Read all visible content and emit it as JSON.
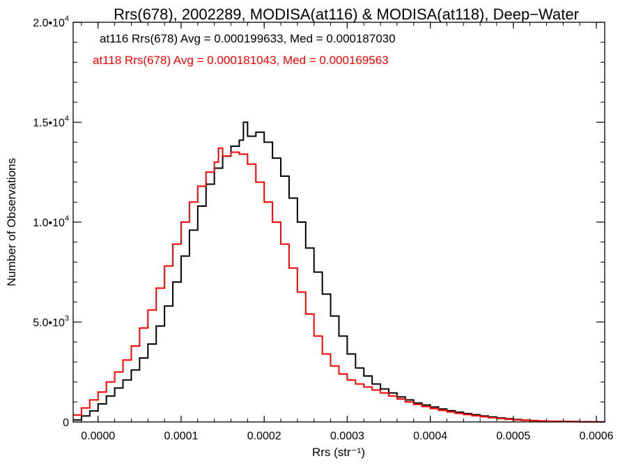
{
  "chart_data": {
    "type": "histogram-step",
    "title": "Rrs(678), 2002289, MODISA(at116) & MODISA(at118), Deep−Water",
    "xlabel": "Rrs (str⁻¹)",
    "ylabel": "Number of Observations",
    "xlim": [
      -3e-05,
      0.00061
    ],
    "ylim": [
      0,
      20000
    ],
    "x_ticks": [
      0.0,
      0.0001,
      0.0002,
      0.0003,
      0.0004,
      0.0005,
      0.0006
    ],
    "x_tick_labels": [
      "0.0000",
      "0.0001",
      "0.0002",
      "0.0003",
      "0.0004",
      "0.0005",
      "0.0006"
    ],
    "y_ticks": [
      0,
      5000,
      10000,
      15000,
      20000
    ],
    "y_tick_labels": [
      {
        "mantissa": "0",
        "exponent": ""
      },
      {
        "mantissa": "5.0•1",
        "exponent": "3"
      },
      {
        "mantissa": "1.0•1",
        "exponent": "4"
      },
      {
        "mantissa": "1.5•1",
        "exponent": "4"
      },
      {
        "mantissa": "2.0•1",
        "exponent": "4"
      }
    ],
    "grid": false,
    "annotations": [
      {
        "text": "at116 Rrs(678) Avg = 0.000199633, Med = 0.000187030",
        "color": "#000000"
      },
      {
        "text": "at118 Rrs(678) Avg = 0.000181043, Med = 0.000169563",
        "color": "#ff0000"
      }
    ],
    "series": [
      {
        "color": "#000000",
        "points": [
          [
            -3e-05,
            100
          ],
          [
            -2e-05,
            300
          ],
          [
            -1e-05,
            550
          ],
          [
            0.0,
            900
          ],
          [
            1e-05,
            1300
          ],
          [
            2e-05,
            1700
          ],
          [
            3e-05,
            2100
          ],
          [
            4e-05,
            2600
          ],
          [
            5e-05,
            3200
          ],
          [
            6e-05,
            3900
          ],
          [
            7e-05,
            4800
          ],
          [
            8e-05,
            5800
          ],
          [
            9e-05,
            7000
          ],
          [
            0.0001,
            8300
          ],
          [
            0.00011,
            9600
          ],
          [
            0.00012,
            10800
          ],
          [
            0.00013,
            11900
          ],
          [
            0.00014,
            12700
          ],
          [
            0.00015,
            13300
          ],
          [
            0.00016,
            13800
          ],
          [
            0.00017,
            14100
          ],
          [
            0.000175,
            15000
          ],
          [
            0.00018,
            14300
          ],
          [
            0.00019,
            14500
          ],
          [
            0.0002,
            14000
          ],
          [
            0.00021,
            13200
          ],
          [
            0.00022,
            12300
          ],
          [
            0.00023,
            11200
          ],
          [
            0.00024,
            10000
          ],
          [
            0.00025,
            8700
          ],
          [
            0.00026,
            7500
          ],
          [
            0.00027,
            6400
          ],
          [
            0.00028,
            5300
          ],
          [
            0.00029,
            4300
          ],
          [
            0.0003,
            3400
          ],
          [
            0.00031,
            2700
          ],
          [
            0.00032,
            2300
          ],
          [
            0.00033,
            1900
          ],
          [
            0.00034,
            1650
          ],
          [
            0.00035,
            1450
          ],
          [
            0.00036,
            1250
          ],
          [
            0.00037,
            1100
          ],
          [
            0.00038,
            950
          ],
          [
            0.00039,
            850
          ],
          [
            0.0004,
            750
          ],
          [
            0.00041,
            650
          ],
          [
            0.00042,
            560
          ],
          [
            0.00043,
            490
          ],
          [
            0.00044,
            420
          ],
          [
            0.00045,
            360
          ],
          [
            0.00046,
            300
          ],
          [
            0.00047,
            250
          ],
          [
            0.00048,
            200
          ],
          [
            0.00049,
            160
          ],
          [
            0.0005,
            120
          ],
          [
            0.00051,
            90
          ],
          [
            0.00052,
            70
          ],
          [
            0.00053,
            50
          ],
          [
            0.00054,
            40
          ],
          [
            0.00055,
            30
          ],
          [
            0.00056,
            25
          ],
          [
            0.00057,
            20
          ],
          [
            0.00058,
            15
          ],
          [
            0.00059,
            10
          ],
          [
            0.0006,
            5
          ]
        ]
      },
      {
        "color": "#ff0000",
        "points": [
          [
            -3e-05,
            350
          ],
          [
            -2e-05,
            700
          ],
          [
            -1e-05,
            1100
          ],
          [
            0.0,
            1500
          ],
          [
            1e-05,
            2000
          ],
          [
            2e-05,
            2500
          ],
          [
            3e-05,
            3100
          ],
          [
            4e-05,
            3800
          ],
          [
            5e-05,
            4700
          ],
          [
            6e-05,
            5600
          ],
          [
            7e-05,
            6700
          ],
          [
            8e-05,
            7800
          ],
          [
            9e-05,
            8900
          ],
          [
            0.0001,
            10000
          ],
          [
            0.00011,
            11000
          ],
          [
            0.00012,
            11800
          ],
          [
            0.00013,
            12500
          ],
          [
            0.00014,
            13000
          ],
          [
            0.000145,
            13700
          ],
          [
            0.00015,
            13300
          ],
          [
            0.00016,
            13500
          ],
          [
            0.00017,
            13400
          ],
          [
            0.00018,
            12900
          ],
          [
            0.00019,
            12000
          ],
          [
            0.0002,
            11000
          ],
          [
            0.00021,
            10000
          ],
          [
            0.00022,
            8900
          ],
          [
            0.00023,
            7700
          ],
          [
            0.00024,
            6500
          ],
          [
            0.00025,
            5400
          ],
          [
            0.00026,
            4300
          ],
          [
            0.00027,
            3400
          ],
          [
            0.00028,
            2800
          ],
          [
            0.00029,
            2400
          ],
          [
            0.0003,
            2100
          ],
          [
            0.00031,
            1900
          ],
          [
            0.00032,
            1750
          ],
          [
            0.00033,
            1600
          ],
          [
            0.00034,
            1450
          ],
          [
            0.00035,
            1300
          ],
          [
            0.00036,
            1150
          ],
          [
            0.00037,
            1000
          ],
          [
            0.00038,
            880
          ],
          [
            0.00039,
            770
          ],
          [
            0.0004,
            670
          ],
          [
            0.00041,
            580
          ],
          [
            0.00042,
            500
          ],
          [
            0.00043,
            430
          ],
          [
            0.00044,
            370
          ],
          [
            0.00045,
            310
          ],
          [
            0.00046,
            260
          ],
          [
            0.00047,
            210
          ],
          [
            0.00048,
            170
          ],
          [
            0.00049,
            130
          ],
          [
            0.0005,
            100
          ],
          [
            0.00051,
            80
          ],
          [
            0.00052,
            60
          ],
          [
            0.00053,
            45
          ],
          [
            0.00054,
            35
          ],
          [
            0.00055,
            25
          ],
          [
            0.00056,
            20
          ],
          [
            0.00057,
            15
          ],
          [
            0.00058,
            10
          ],
          [
            0.00059,
            8
          ],
          [
            0.0006,
            5
          ]
        ]
      }
    ]
  }
}
